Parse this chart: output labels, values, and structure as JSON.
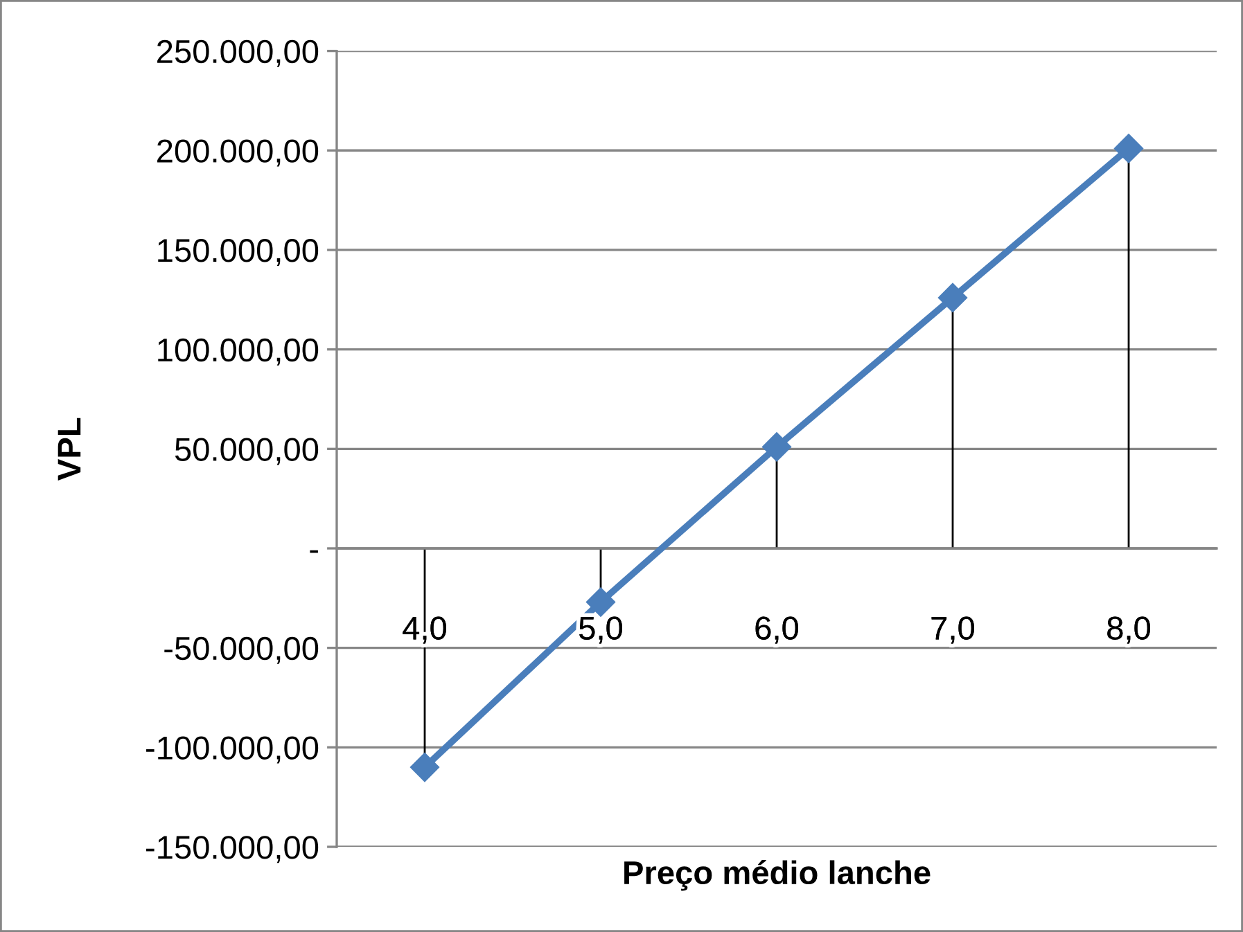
{
  "chart_data": {
    "type": "line",
    "xlabel": "Preço médio lanche",
    "ylabel": "VPL",
    "categories": [
      "4,0",
      "5,0",
      "6,0",
      "7,0",
      "8,0"
    ],
    "series": [
      {
        "color": "#4a7ebb",
        "values": [
          -110000,
          -27000,
          51000,
          126000,
          201000
        ],
        "errors": [
          [
            -110000,
            0
          ],
          [
            -27000,
            0
          ],
          [
            0,
            51000
          ],
          [
            0,
            126000
          ],
          [
            0,
            201000
          ]
        ]
      }
    ],
    "ylim": [
      -150000,
      250000
    ],
    "yticks": [
      {
        "value": -150000,
        "label": "-150.000,00"
      },
      {
        "value": -100000,
        "label": "-100.000,00"
      },
      {
        "value": -50000,
        "label": "-50.000,00"
      },
      {
        "value": 0,
        "label": "-"
      },
      {
        "value": 50000,
        "label": "50.000,00"
      },
      {
        "value": 100000,
        "label": "100.000,00"
      },
      {
        "value": 150000,
        "label": "150.000,00"
      },
      {
        "value": 200000,
        "label": "200.000,00"
      },
      {
        "value": 250000,
        "label": "250.000,00"
      }
    ],
    "grid": "y",
    "marker": "diamond",
    "line_style": "solid"
  }
}
